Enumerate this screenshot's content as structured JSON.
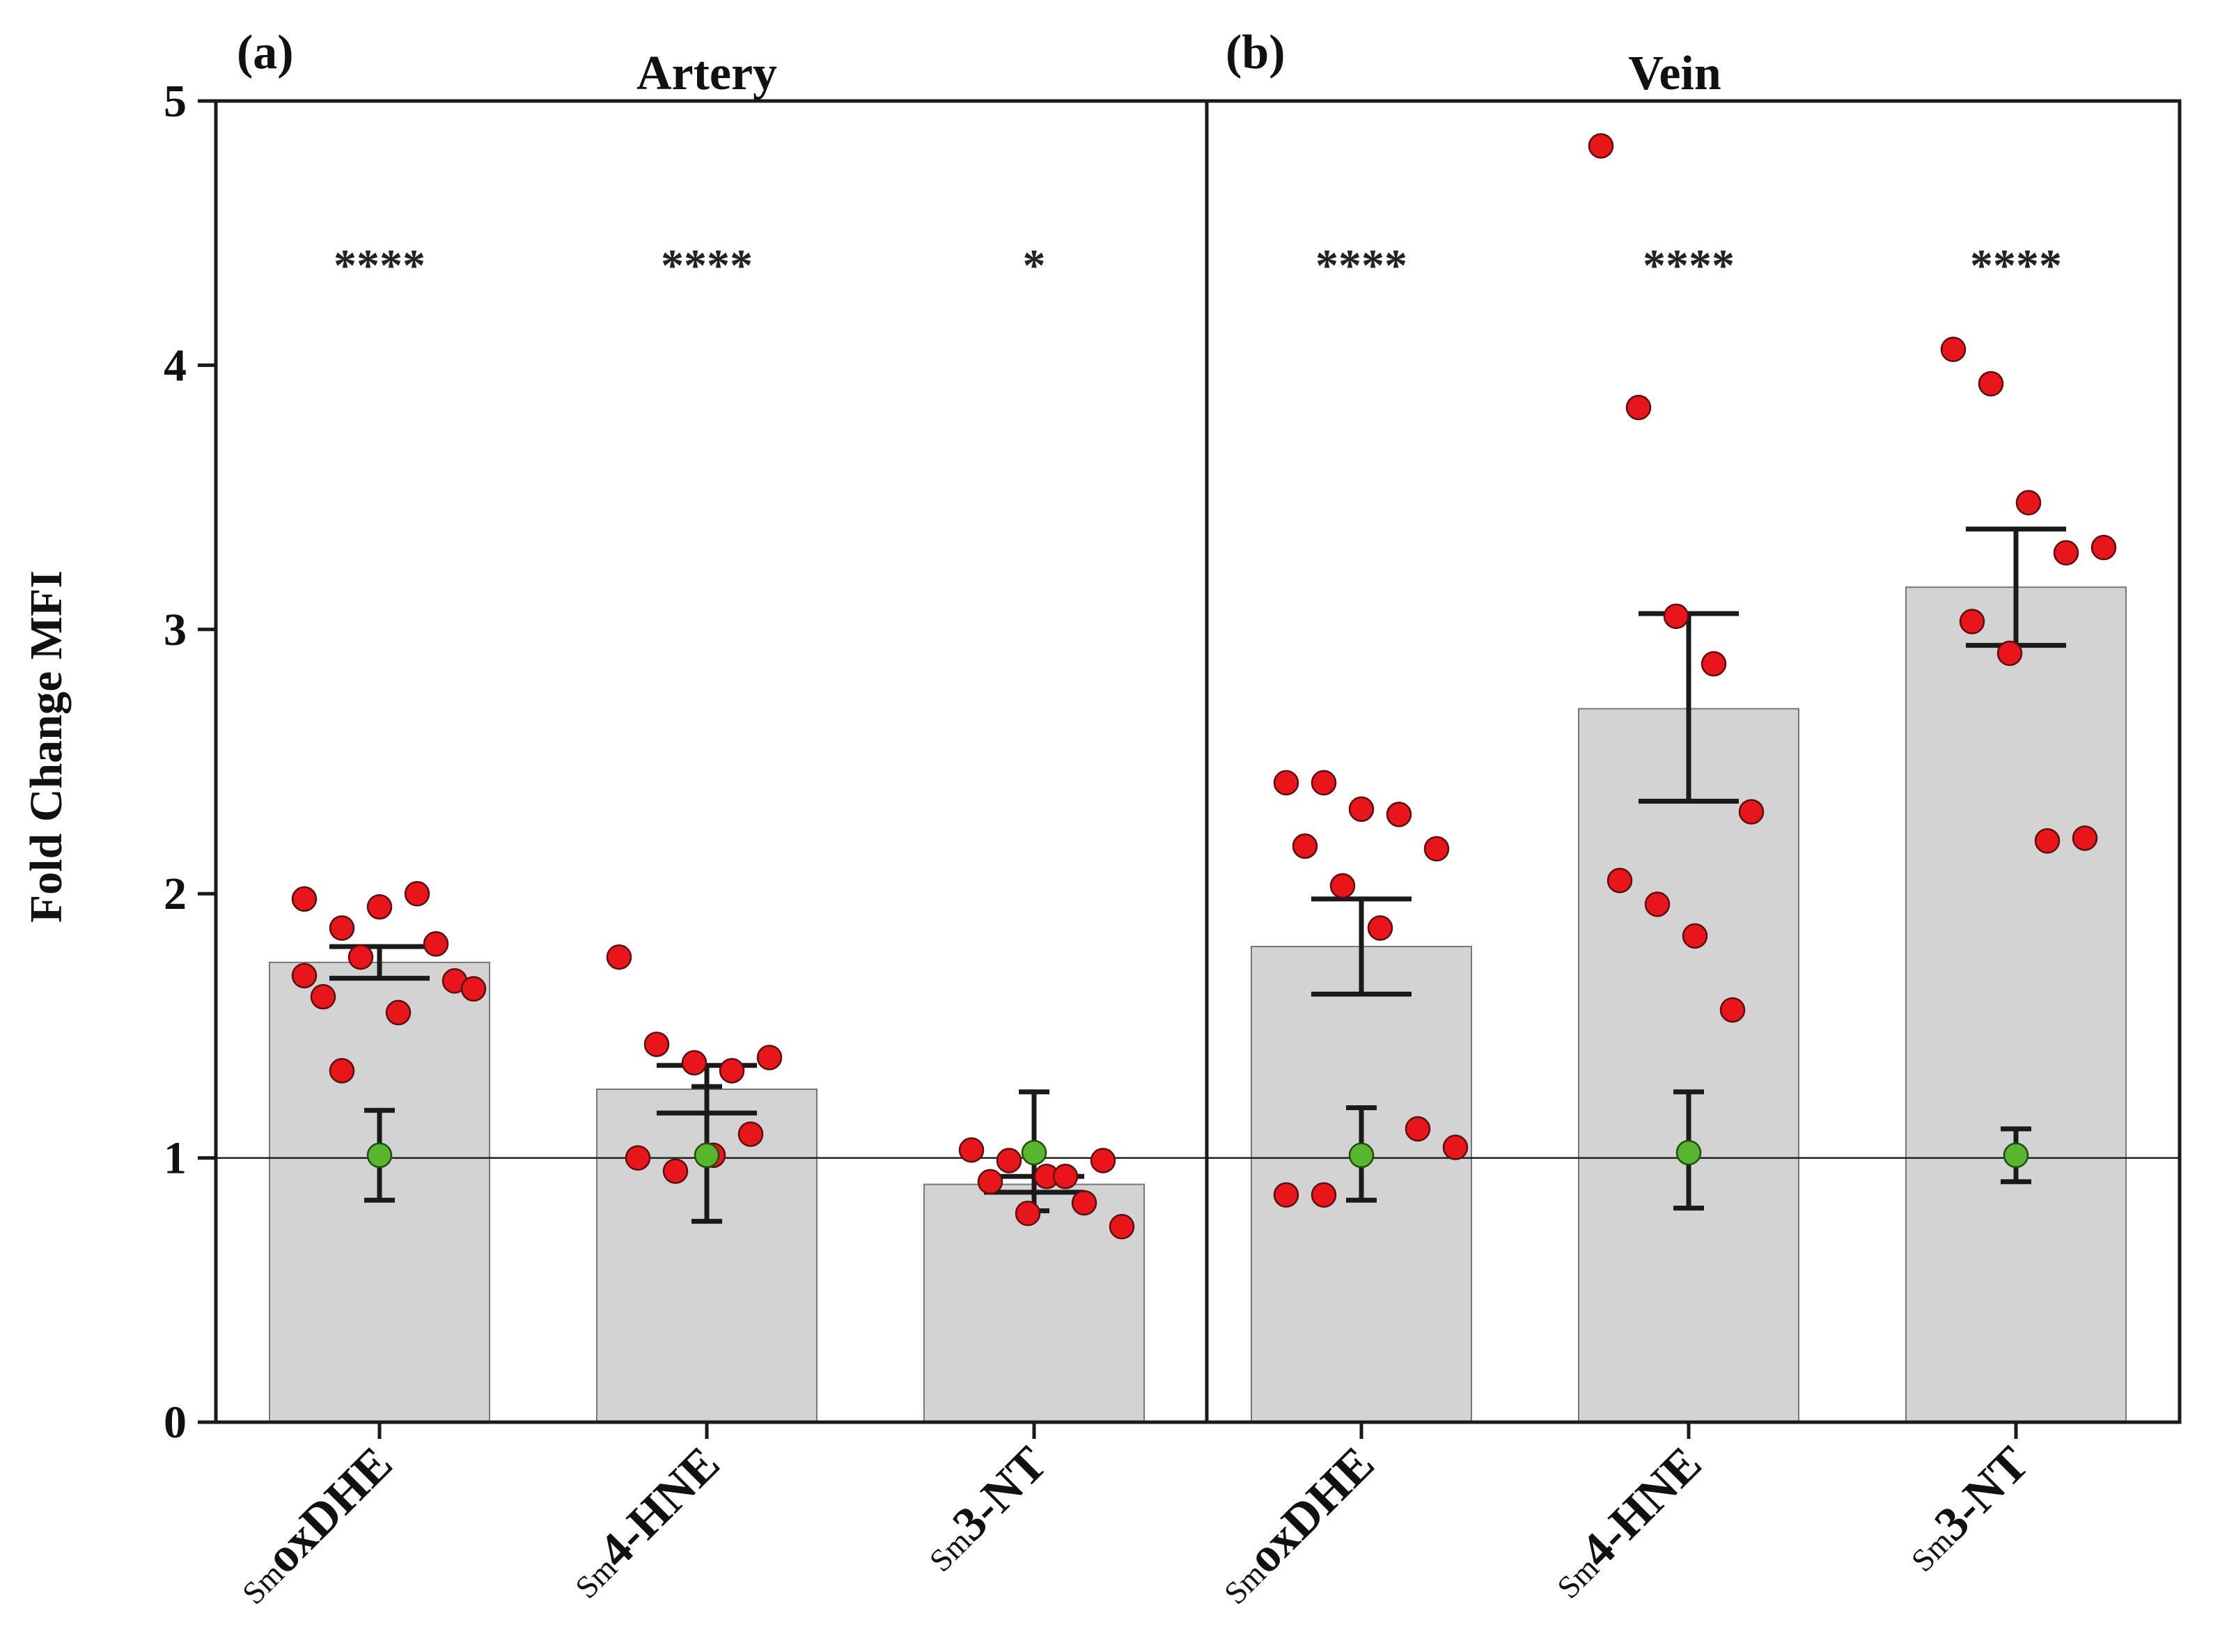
{
  "chart_data": {
    "type": "bar",
    "ylabel": "Fold Change MFI",
    "ylim": [
      0,
      5
    ],
    "yticks": [
      "0",
      "1",
      "2",
      "3",
      "4",
      "5"
    ],
    "reference_line": 1,
    "grid": false,
    "colors": {
      "bar": "#d3d3d3",
      "sample_point": "#e8161b",
      "control_point": "#5ab52e",
      "error_bar": "#1a1a1a"
    },
    "panels": [
      {
        "label": "(a)",
        "title": "Artery",
        "groups": [
          {
            "prefix": "Sm",
            "name": "oxDHE",
            "bar_value": 1.74,
            "sample_error": [
              1.68,
              1.8
            ],
            "significance": "****",
            "points": [
              1.98,
              1.87,
              1.95,
              2.0,
              1.67,
              1.61,
              1.76,
              1.55,
              1.81,
              1.64,
              1.69,
              1.33
            ],
            "control": {
              "value": 1.01,
              "error": [
                0.84,
                1.18
              ]
            }
          },
          {
            "prefix": "Sm",
            "name": "4-HNE",
            "bar_value": 1.26,
            "sample_error": [
              1.17,
              1.35
            ],
            "significance": "****",
            "points": [
              1.76,
              1.43,
              1.36,
              1.33,
              1.38,
              1.0,
              0.95,
              1.01,
              1.09
            ],
            "control": {
              "value": 1.01,
              "error": [
                0.76,
                1.27
              ]
            }
          },
          {
            "prefix": "Sm",
            "name": "3-NT",
            "bar_value": 0.9,
            "sample_error": [
              0.87,
              0.93
            ],
            "significance": "*",
            "points": [
              1.03,
              0.99,
              0.93,
              0.83,
              0.74,
              0.91,
              0.79,
              0.93,
              0.99
            ],
            "control": {
              "value": 1.02,
              "error": [
                0.8,
                1.25
              ]
            }
          }
        ]
      },
      {
        "label": "(b)",
        "title": "Vein",
        "groups": [
          {
            "prefix": "Sm",
            "name": "oxDHE",
            "bar_value": 1.8,
            "sample_error": [
              1.62,
              1.98
            ],
            "significance": "****",
            "points": [
              2.42,
              2.42,
              2.32,
              2.3,
              2.17,
              2.18,
              2.03,
              1.87,
              1.11,
              1.04,
              0.86,
              0.86
            ],
            "control": {
              "value": 1.01,
              "error": [
                0.84,
                1.19
              ]
            }
          },
          {
            "prefix": "Sm",
            "name": "4-HNE",
            "bar_value": 2.7,
            "sample_error": [
              2.35,
              3.06
            ],
            "significance": "****",
            "points": [
              4.83,
              3.84,
              3.05,
              2.87,
              2.31,
              2.05,
              1.96,
              1.84,
              1.56
            ],
            "control": {
              "value": 1.02,
              "error": [
                0.81,
                1.25
              ]
            }
          },
          {
            "prefix": "Sm",
            "name": "3-NT",
            "bar_value": 3.16,
            "sample_error": [
              2.94,
              3.38
            ],
            "significance": "****",
            "points": [
              4.06,
              3.93,
              3.48,
              3.29,
              3.31,
              3.03,
              2.91,
              2.2,
              2.21
            ],
            "control": {
              "value": 1.01,
              "error": [
                0.91,
                1.11
              ]
            }
          }
        ]
      }
    ]
  }
}
